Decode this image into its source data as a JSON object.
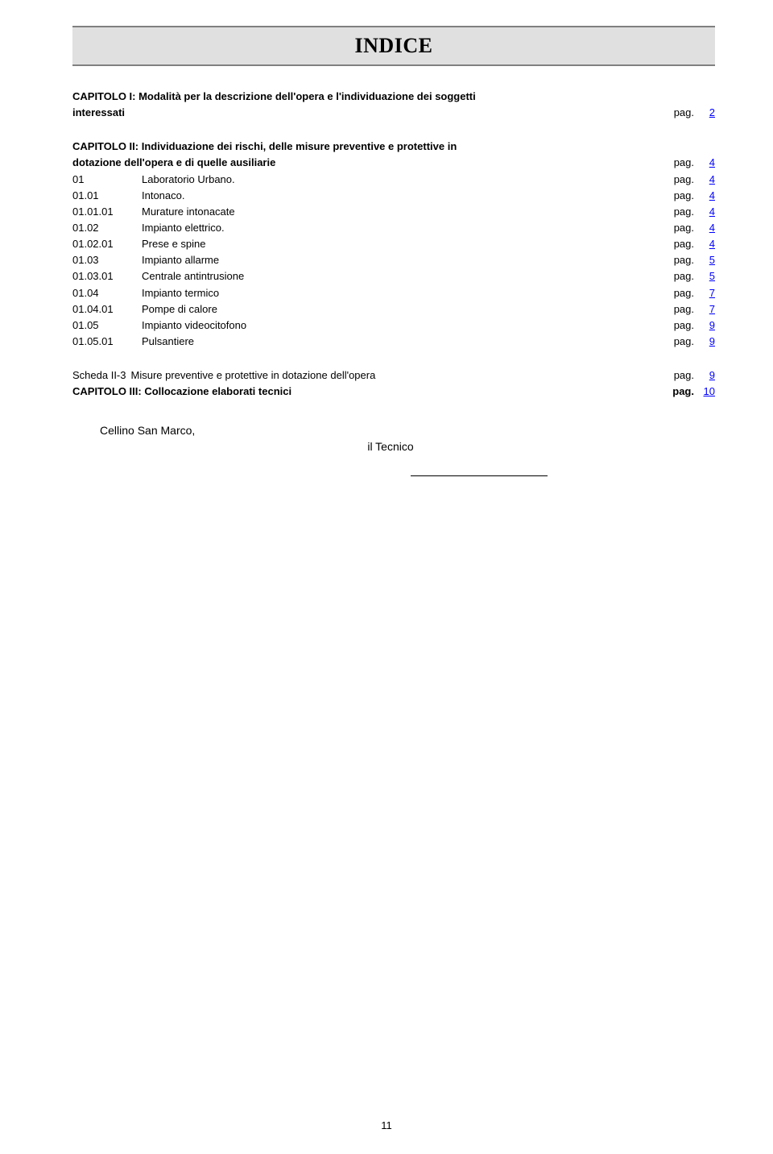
{
  "title": "INDICE",
  "pag_label": "pag.",
  "chapter1": {
    "line1": "CAPITOLO I: Modalità per la descrizione dell'opera e l'individuazione dei soggetti",
    "line2": "interessati",
    "page": "2"
  },
  "chapter2": {
    "line1": "CAPITOLO II: Individuazione dei rischi, delle misure preventive e protettive in",
    "line2": "dotazione dell'opera e di quelle ausiliarie",
    "page": "4"
  },
  "entries": [
    {
      "code": "01",
      "label": "Laboratorio Urbano.",
      "page": "4"
    },
    {
      "code": "01.01",
      "label": "Intonaco.",
      "page": "4"
    },
    {
      "code": "01.01.01",
      "label": "Murature intonacate",
      "page": "4"
    },
    {
      "code": "01.02",
      "label": "Impianto elettrico.",
      "page": "4"
    },
    {
      "code": "01.02.01",
      "label": "Prese e spine",
      "page": "4"
    },
    {
      "code": "01.03",
      "label": "Impianto allarme",
      "page": "5"
    },
    {
      "code": "01.03.01",
      "label": "Centrale antintrusione",
      "page": "5"
    },
    {
      "code": "01.04",
      "label": "Impianto termico",
      "page": "7"
    },
    {
      "code": "01.04.01",
      "label": "Pompe di calore",
      "page": "7"
    },
    {
      "code": "01.05",
      "label": "Impianto videocitofono",
      "page": "9"
    },
    {
      "code": "01.05.01",
      "label": "Pulsantiere",
      "page": "9"
    }
  ],
  "scheda": {
    "code": "Scheda II-3",
    "label": "Misure preventive e protettive in dotazione dell'opera",
    "page": "9"
  },
  "chapter3": {
    "label": "CAPITOLO III: Collocazione elaborati tecnici",
    "page": "10"
  },
  "footer": {
    "place": "Cellino San Marco,",
    "tecnico": "il Tecnico"
  },
  "page_number": "11",
  "colors": {
    "link": "#0000ff",
    "title_bg": "#e0e0e0",
    "border": "#808080"
  }
}
